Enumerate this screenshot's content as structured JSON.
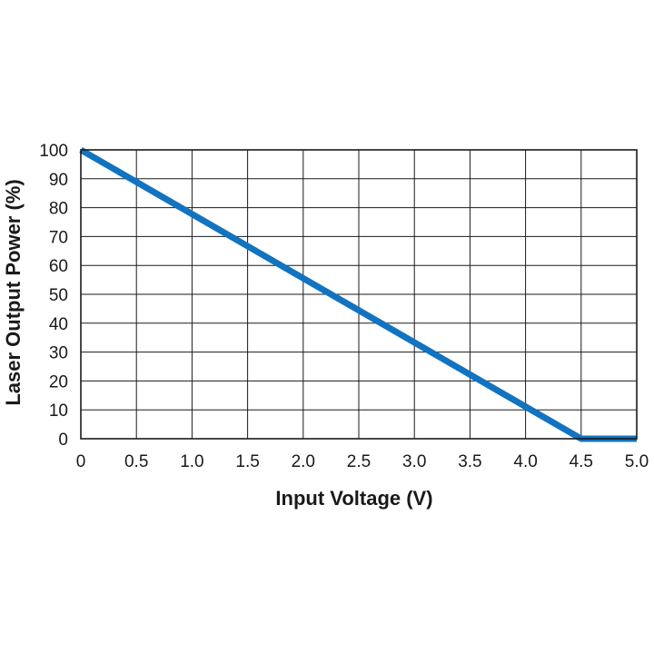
{
  "chart_data": {
    "type": "line",
    "xlabel": "Input Voltage (V)",
    "ylabel": "Laser Output Power (%)",
    "xlim": [
      0,
      5.0
    ],
    "ylim": [
      0,
      100
    ],
    "x_ticks": [
      "0",
      "0.5",
      "1.0",
      "1.5",
      "2.0",
      "2.5",
      "3.0",
      "3.5",
      "4.0",
      "4.5",
      "5.0"
    ],
    "y_ticks": [
      "0",
      "10",
      "20",
      "30",
      "40",
      "50",
      "60",
      "70",
      "80",
      "90",
      "100"
    ],
    "grid": true,
    "series": [
      {
        "color": "#1273c0",
        "x": [
          0,
          4.5,
          5.0
        ],
        "y": [
          100,
          0,
          0
        ]
      }
    ]
  }
}
